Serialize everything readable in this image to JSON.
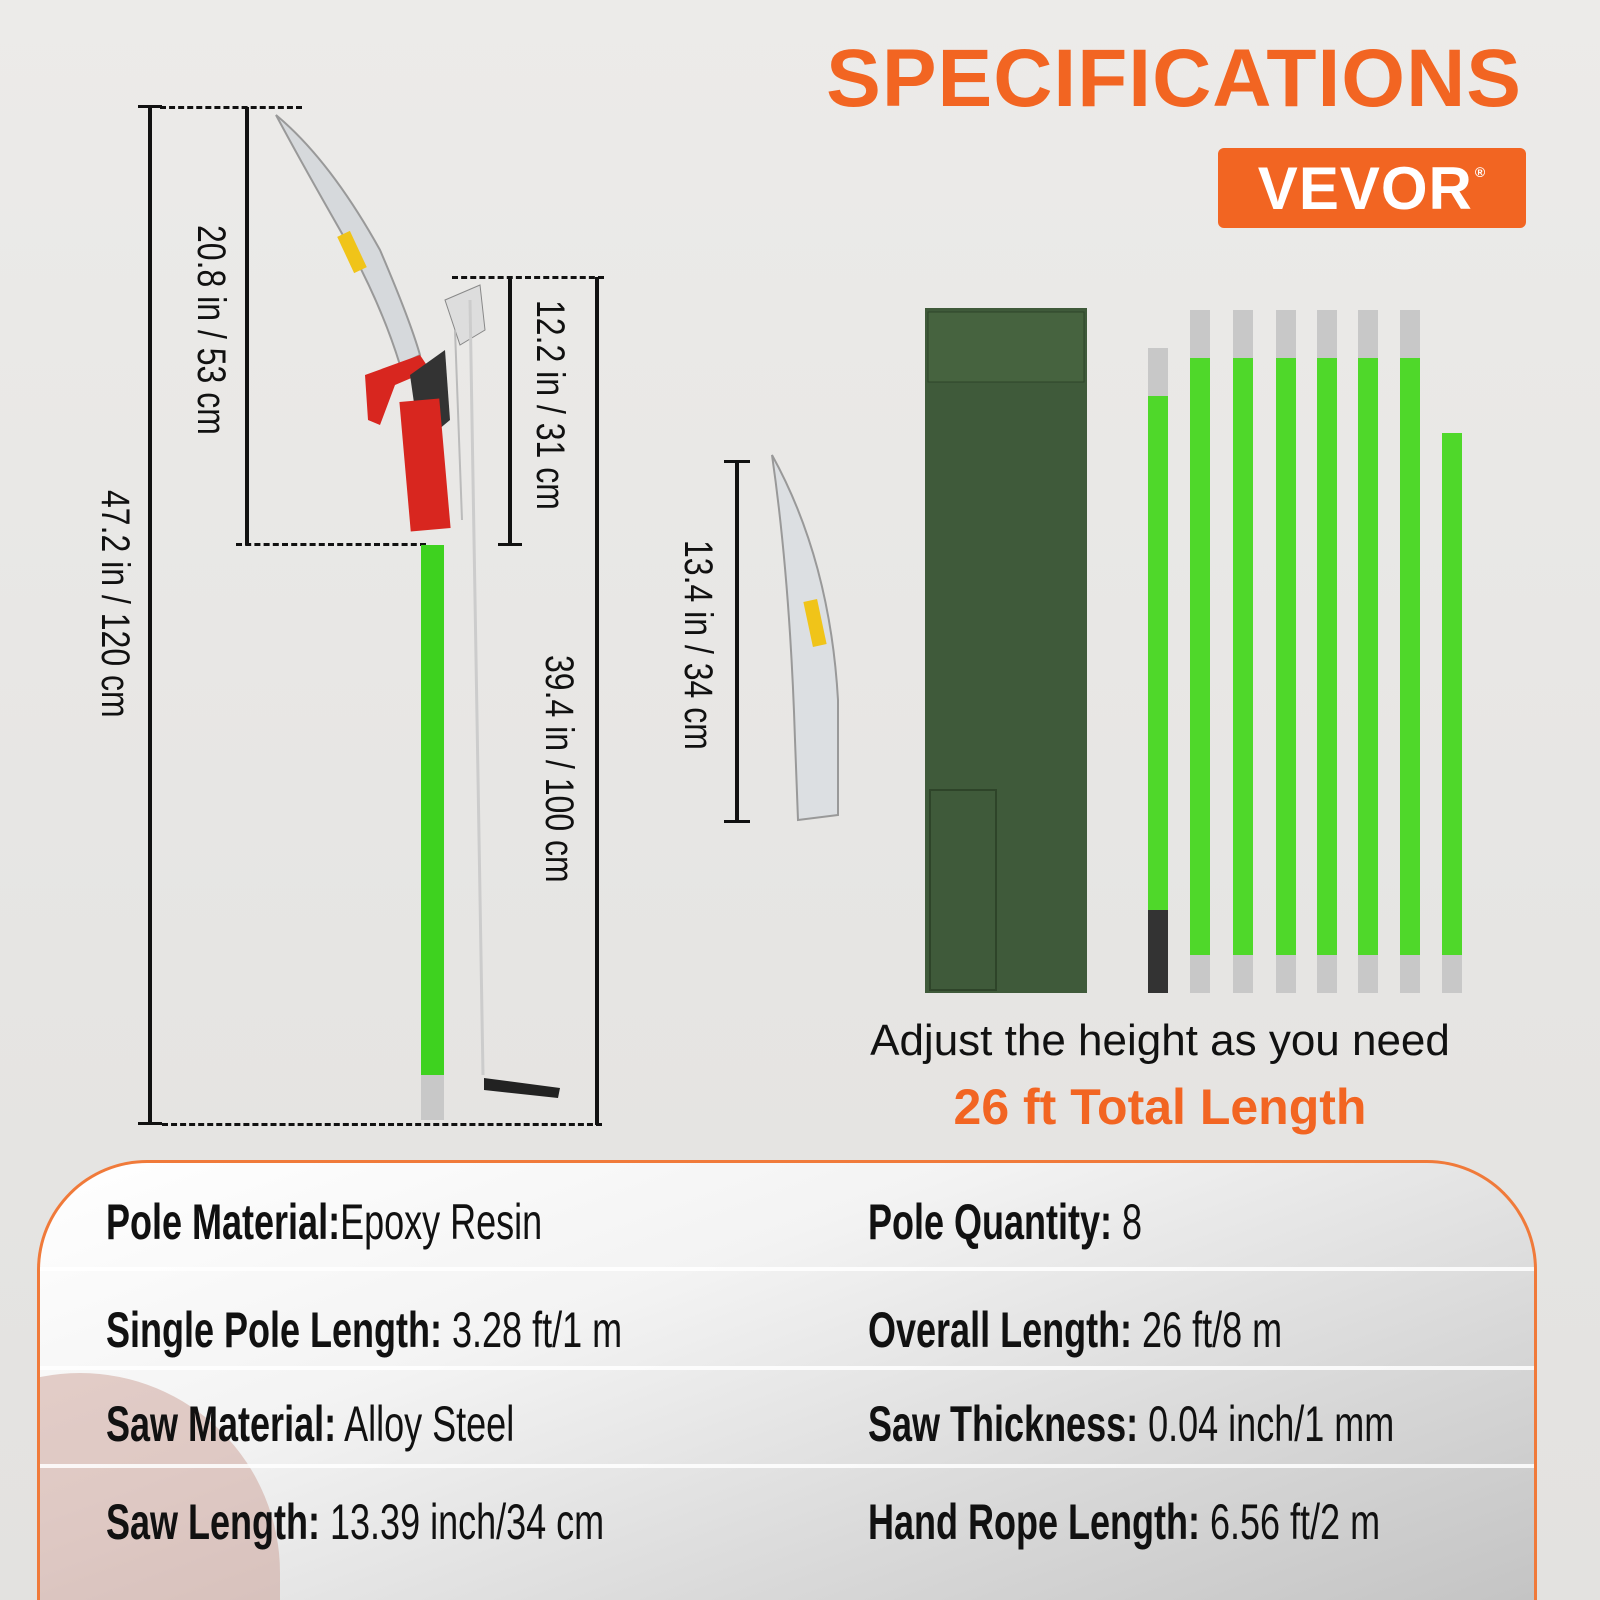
{
  "header": {
    "title": "SPECIFICATIONS",
    "brand": "VEVOR",
    "brand_mark": "®"
  },
  "colors": {
    "accent": "#f26522",
    "pole_green": "#3ed21f",
    "bag_green": "#3f5a3a"
  },
  "dimensions": {
    "overall": "47.2 in /  120 cm",
    "head_with_saw": "20.8 in / 53 cm",
    "pruner_head": "12.2 in / 31 cm",
    "pole": "39.4 in / 100 cm",
    "saw_blade": "13.4 in / 34 cm"
  },
  "product": {
    "blade_logo": "VEVOR",
    "pole_count_shown": 8
  },
  "caption": {
    "adjust": "Adjust the height as you need",
    "total": "26 ft Total Length"
  },
  "specs": [
    {
      "left_label": "Pole Material:",
      "left_value": "Epoxy Resin",
      "right_label": "Pole Quantity:",
      "right_value": " 8"
    },
    {
      "left_label": "Single Pole Length:",
      "left_value": " 3.28 ft/1 m",
      "right_label": "Overall Length:",
      "right_value": " 26 ft/8 m"
    },
    {
      "left_label": "Saw Material:",
      "left_value": " Alloy Steel",
      "right_label": "Saw Thickness:",
      "right_value": " 0.04 inch/1 mm"
    },
    {
      "left_label": "Saw Length:",
      "left_value": " 13.39 inch/34 cm",
      "right_label": "Hand Rope Length:",
      "right_value": " 6.56 ft/2 m"
    }
  ]
}
